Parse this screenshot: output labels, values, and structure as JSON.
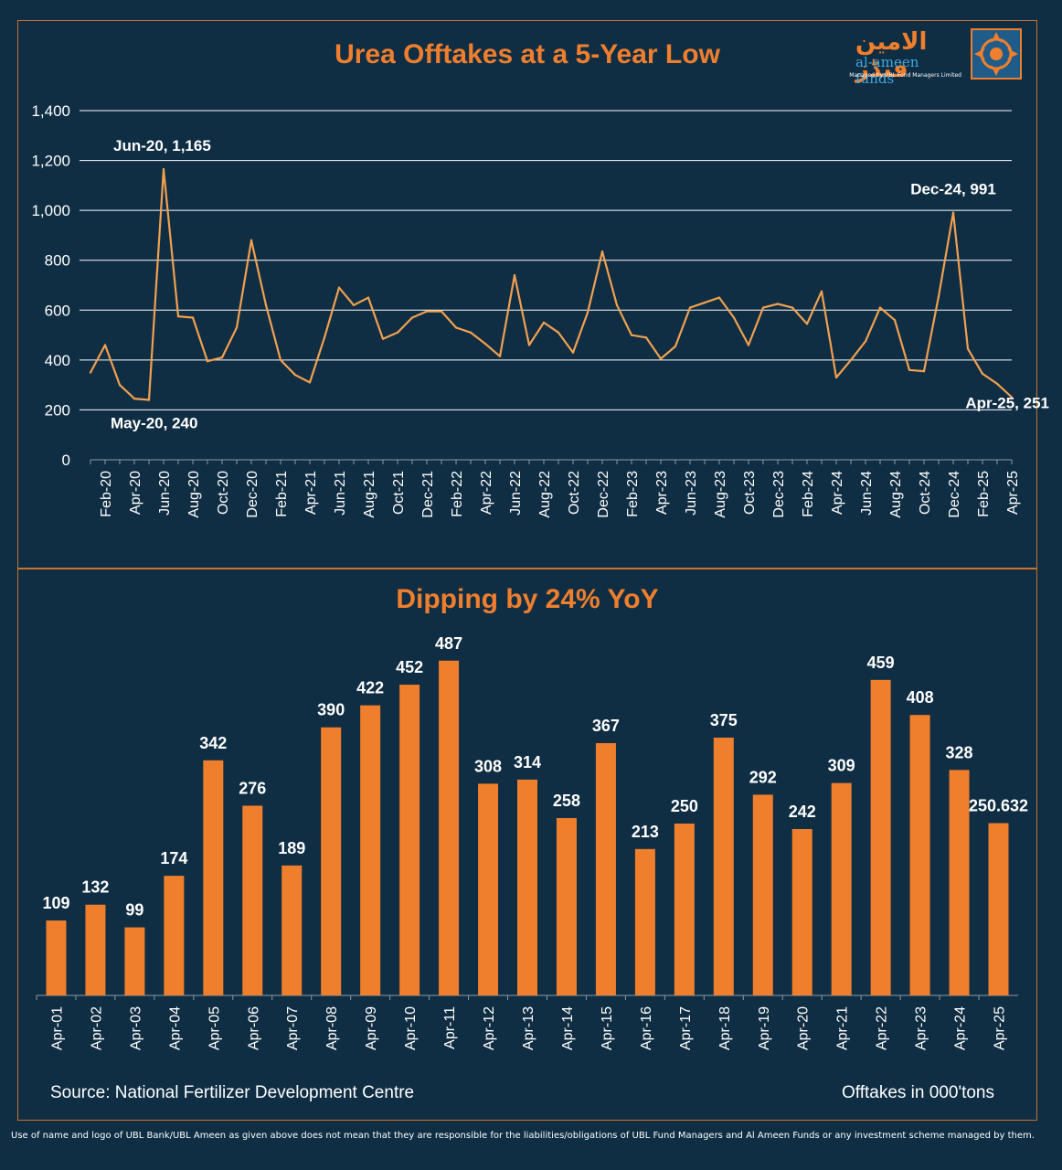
{
  "logo": {
    "urdu": "الامین فنڈز",
    "english": "al-ameen funds",
    "tagline": "Managed by UBL Fund Managers Limited"
  },
  "colors": {
    "background": "#0f2d43",
    "accent": "#f07f2d",
    "line": "#f0a050",
    "grid": "#ffffff"
  },
  "chart_data": [
    {
      "type": "line",
      "title": "Urea Offtakes at a 5-Year Low",
      "ylim": [
        0,
        1400
      ],
      "yticks": [
        "0",
        "200",
        "400",
        "600",
        "800",
        "1,000",
        "1,200",
        "1,400"
      ],
      "ytick_values": [
        0,
        200,
        400,
        600,
        800,
        1000,
        1200,
        1400
      ],
      "grid": true,
      "x_tick_labels": [
        "Feb-20",
        "Apr-20",
        "Jun-20",
        "Aug-20",
        "Oct-20",
        "Dec-20",
        "Feb-21",
        "Apr-21",
        "Jun-21",
        "Aug-21",
        "Oct-21",
        "Dec-21",
        "Feb-22",
        "Apr-22",
        "Jun-22",
        "Aug-22",
        "Oct-22",
        "Dec-22",
        "Feb-23",
        "Apr-23",
        "Jun-23",
        "Aug-23",
        "Oct-23",
        "Dec-23",
        "Feb-24",
        "Apr-24",
        "Jun-24",
        "Aug-24",
        "Oct-24",
        "Dec-24",
        "Feb-25",
        "Apr-25"
      ],
      "x": [
        "Jan-20",
        "Feb-20",
        "Mar-20",
        "Apr-20",
        "May-20",
        "Jun-20",
        "Jul-20",
        "Aug-20",
        "Sep-20",
        "Oct-20",
        "Nov-20",
        "Dec-20",
        "Jan-21",
        "Feb-21",
        "Mar-21",
        "Apr-21",
        "May-21",
        "Jun-21",
        "Jul-21",
        "Aug-21",
        "Sep-21",
        "Oct-21",
        "Nov-21",
        "Dec-21",
        "Jan-22",
        "Feb-22",
        "Mar-22",
        "Apr-22",
        "May-22",
        "Jun-22",
        "Jul-22",
        "Aug-22",
        "Sep-22",
        "Oct-22",
        "Nov-22",
        "Dec-22",
        "Jan-23",
        "Feb-23",
        "Mar-23",
        "Apr-23",
        "May-23",
        "Jun-23",
        "Jul-23",
        "Aug-23",
        "Sep-23",
        "Oct-23",
        "Nov-23",
        "Dec-23",
        "Jan-24",
        "Feb-24",
        "Mar-24",
        "Apr-24",
        "May-24",
        "Jun-24",
        "Jul-24",
        "Aug-24",
        "Sep-24",
        "Oct-24",
        "Nov-24",
        "Dec-24",
        "Jan-25",
        "Feb-25",
        "Mar-25",
        "Apr-25"
      ],
      "values": [
        350,
        460,
        300,
        245,
        240,
        1165,
        575,
        570,
        395,
        410,
        530,
        880,
        620,
        400,
        340,
        310,
        490,
        690,
        620,
        650,
        485,
        510,
        570,
        595,
        595,
        530,
        510,
        465,
        415,
        740,
        460,
        550,
        510,
        430,
        590,
        835,
        620,
        500,
        490,
        405,
        455,
        610,
        630,
        650,
        570,
        460,
        610,
        625,
        610,
        545,
        675,
        330,
        400,
        475,
        610,
        560,
        360,
        355,
        655,
        991,
        445,
        345,
        305,
        251
      ],
      "annotations": [
        {
          "label": "Jun-20, 1,165",
          "x": "Jun-20",
          "y": 1165
        },
        {
          "label": "May-20, 240",
          "x": "May-20",
          "y": 240
        },
        {
          "label": "Dec-24, 991",
          "x": "Dec-24",
          "y": 991
        },
        {
          "label": "Apr-25, 251",
          "x": "Apr-25",
          "y": 251
        }
      ]
    },
    {
      "type": "bar",
      "title": "Dipping by 24% YoY",
      "categories": [
        "Apr-01",
        "Apr-02",
        "Apr-03",
        "Apr-04",
        "Apr-05",
        "Apr-06",
        "Apr-07",
        "Apr-08",
        "Apr-09",
        "Apr-10",
        "Apr-11",
        "Apr-12",
        "Apr-13",
        "Apr-14",
        "Apr-15",
        "Apr-16",
        "Apr-17",
        "Apr-18",
        "Apr-19",
        "Apr-20",
        "Apr-21",
        "Apr-22",
        "Apr-23",
        "Apr-24",
        "Apr-25"
      ],
      "values": [
        109,
        132,
        99,
        174,
        342,
        276,
        189,
        390,
        422,
        452,
        487,
        308,
        314,
        258,
        367,
        213,
        250,
        375,
        292,
        242,
        309,
        459,
        408,
        328,
        250.632
      ],
      "value_labels": [
        "109",
        "132",
        "99",
        "174",
        "342",
        "276",
        "189",
        "390",
        "422",
        "452",
        "487",
        "308",
        "314",
        "258",
        "367",
        "213",
        "250",
        "375",
        "292",
        "242",
        "309",
        "459",
        "408",
        "328",
        "250.632"
      ],
      "ylim": [
        0,
        500
      ],
      "source": "Source:  National Fertilizer  Development  Centre",
      "units": "Offtakes in 000'tons"
    }
  ],
  "disclaimer": "Use of name and logo of UBL Bank/UBL Ameen as given above does not mean that they are responsible for the liabilities/obligations of UBL Fund Managers and Al Ameen Funds or any investment scheme managed by them."
}
